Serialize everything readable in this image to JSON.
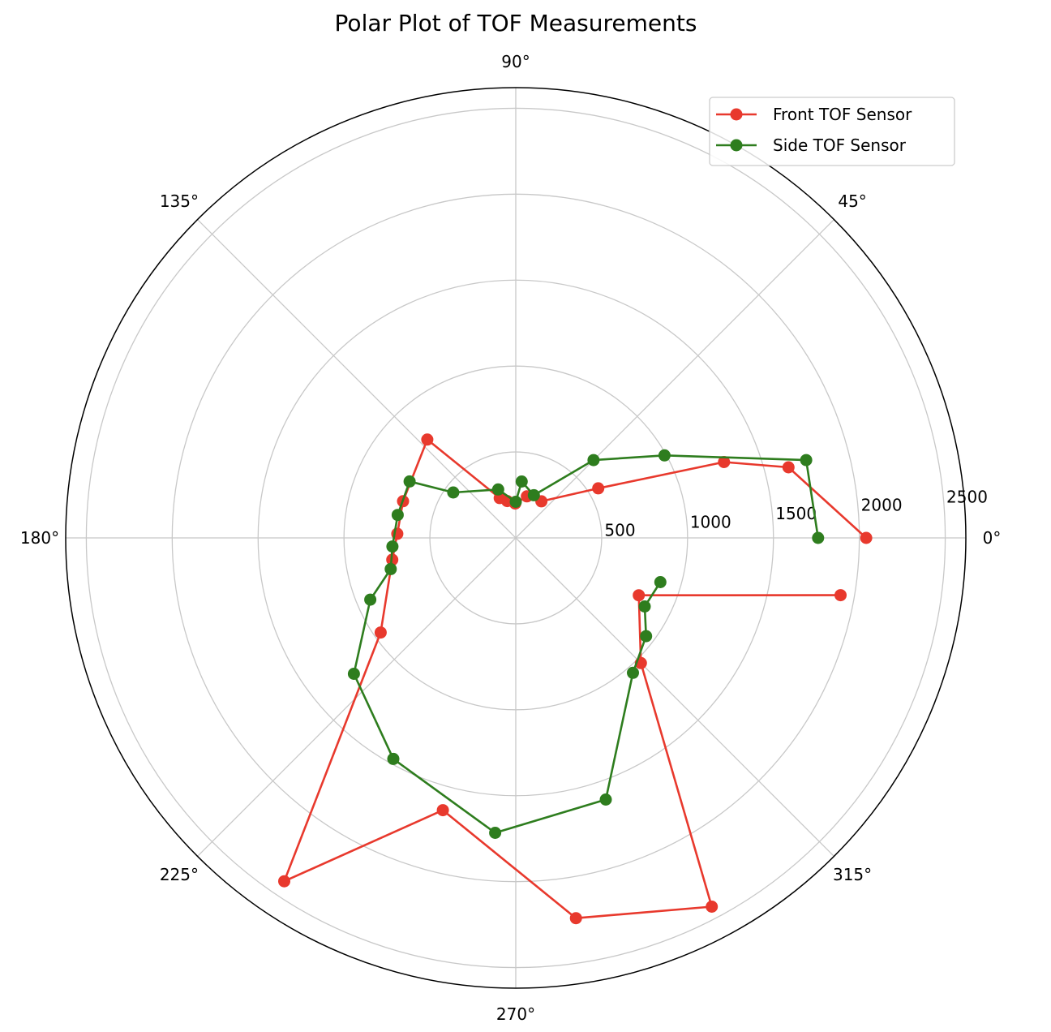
{
  "chart_data": {
    "type": "polar-line",
    "title": "Polar Plot of TOF Measurements",
    "angle_unit": "degrees",
    "rlim": [
      0,
      2620
    ],
    "r_ticks": [
      500,
      1000,
      1500,
      2000,
      2500
    ],
    "r_tick_labels": [
      "500",
      "1000",
      "1500",
      "2000",
      "2500"
    ],
    "theta_ticks": [
      0,
      45,
      90,
      135,
      180,
      225,
      270,
      315
    ],
    "theta_tick_labels": [
      "0°",
      "45°",
      "90°",
      "135°",
      "180°",
      "225°",
      "270°",
      "315°"
    ],
    "grid": true,
    "legend_position": "top-right",
    "series": [
      {
        "name": "Front TOF Sensor",
        "color": "#e8392d",
        "points": [
          {
            "theta": 0,
            "r": 2040
          },
          {
            "theta": 14.5,
            "r": 1640
          },
          {
            "theta": 20,
            "r": 1290
          },
          {
            "theta": 31,
            "r": 560
          },
          {
            "theta": 55,
            "r": 260
          },
          {
            "theta": 75,
            "r": 250
          },
          {
            "theta": 91,
            "r": 200
          },
          {
            "theta": 103,
            "r": 220
          },
          {
            "theta": 112,
            "r": 250
          },
          {
            "theta": 132,
            "r": 770
          },
          {
            "theta": 162,
            "r": 690
          },
          {
            "theta": 178,
            "r": 690
          },
          {
            "theta": 190,
            "r": 730
          },
          {
            "theta": 215,
            "r": 960
          },
          {
            "theta": 236,
            "r": 2410
          },
          {
            "theta": 255,
            "r": 1640
          },
          {
            "theta": 279,
            "r": 2240
          },
          {
            "theta": 298,
            "r": 2430
          },
          {
            "theta": 315,
            "r": 1030
          },
          {
            "theta": 335,
            "r": 790
          },
          {
            "theta": 350,
            "r": 1920
          }
        ]
      },
      {
        "name": "Side TOF Sensor",
        "color": "#2e7d1e",
        "points": [
          {
            "theta": 0,
            "r": 1760
          },
          {
            "theta": 15,
            "r": 1750
          },
          {
            "theta": 29,
            "r": 990
          },
          {
            "theta": 45,
            "r": 640
          },
          {
            "theta": 67,
            "r": 270
          },
          {
            "theta": 84,
            "r": 330
          },
          {
            "theta": 90,
            "r": 210
          },
          {
            "theta": 110,
            "r": 300
          },
          {
            "theta": 144,
            "r": 450
          },
          {
            "theta": 152,
            "r": 700
          },
          {
            "theta": 169,
            "r": 700
          },
          {
            "theta": 184,
            "r": 720
          },
          {
            "theta": 194,
            "r": 750
          },
          {
            "theta": 203,
            "r": 920
          },
          {
            "theta": 220,
            "r": 1230
          },
          {
            "theta": 241,
            "r": 1470
          },
          {
            "theta": 266,
            "r": 1720
          },
          {
            "theta": 289,
            "r": 1610
          },
          {
            "theta": 311,
            "r": 1040
          },
          {
            "theta": 323,
            "r": 950
          },
          {
            "theta": 332,
            "r": 850
          },
          {
            "theta": 343,
            "r": 880
          }
        ]
      }
    ]
  }
}
